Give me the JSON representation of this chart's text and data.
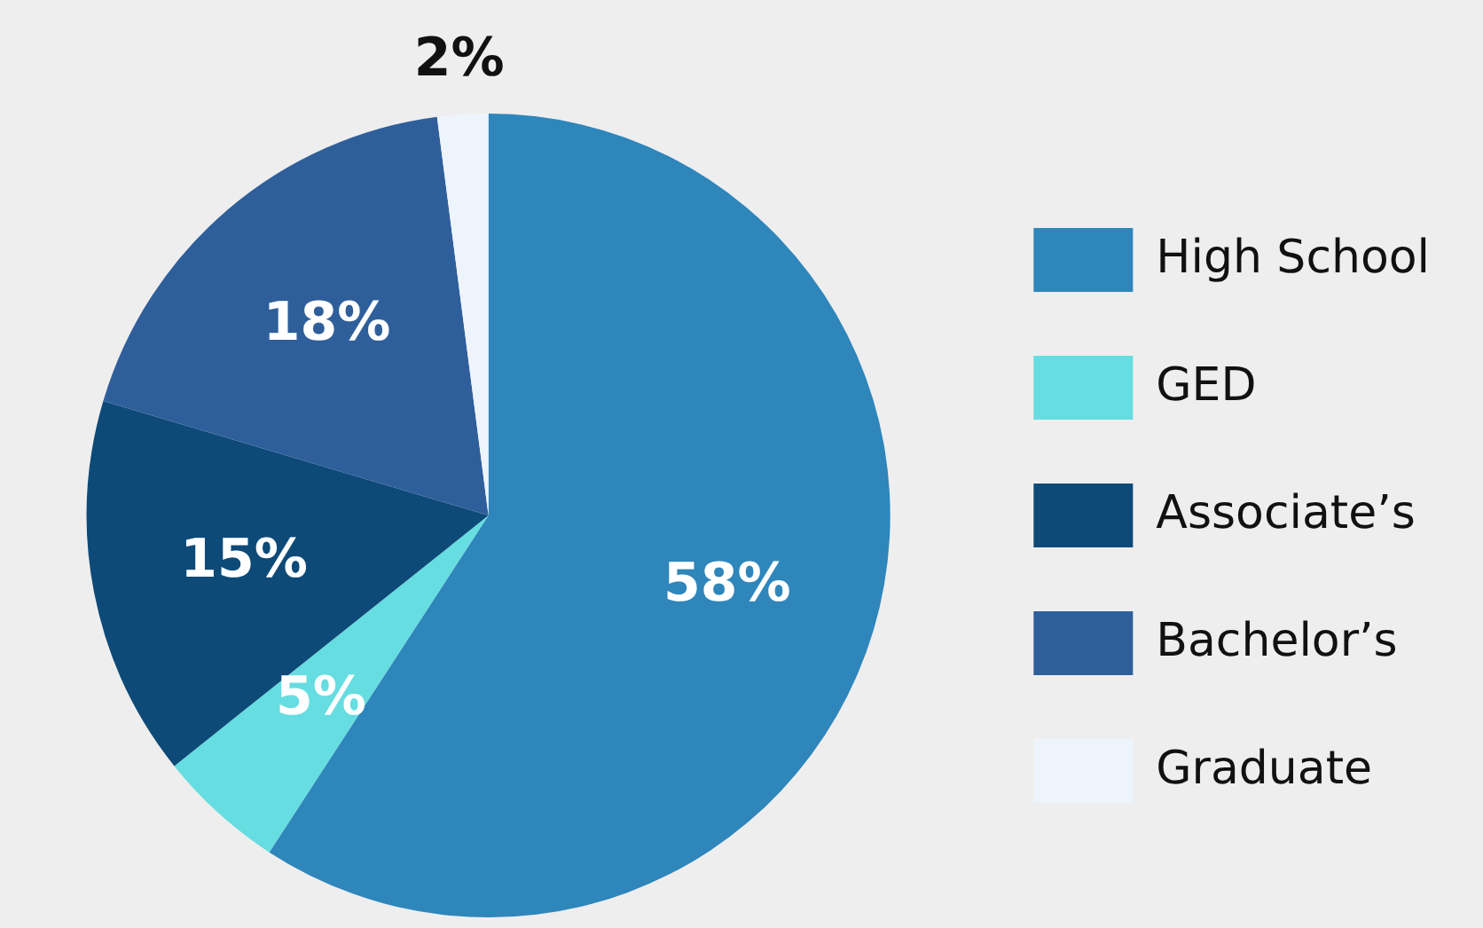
{
  "chart_data": {
    "type": "pie",
    "categories": [
      "High School",
      "GED",
      "Associate’s",
      "Bachelor’s",
      "Graduate"
    ],
    "values": [
      58,
      5,
      15,
      18,
      2
    ],
    "colors": [
      "#2e86bb",
      "#66dde0",
      "#0d4a78",
      "#2f5f9b",
      "#eef4fb"
    ],
    "value_labels": [
      "58%",
      "5%",
      "15%",
      "18%",
      "2%"
    ],
    "legend": "right"
  }
}
